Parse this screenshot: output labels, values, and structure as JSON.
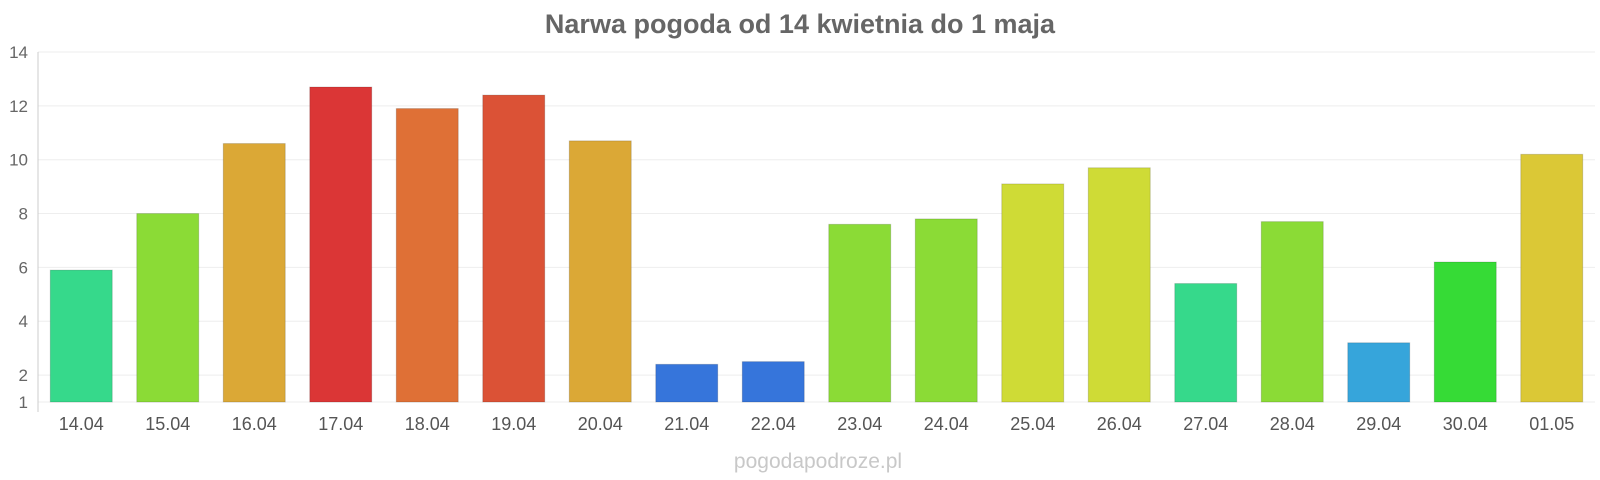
{
  "chart_data": {
    "type": "bar",
    "title": "Narwa pogoda od 14 kwietnia do 1 maja",
    "xlabel": "",
    "ylabel": "",
    "ylim": [
      1,
      14
    ],
    "yticks": [
      1,
      2,
      4,
      6,
      8,
      10,
      12,
      14
    ],
    "grid": true,
    "legend": "none",
    "categories": [
      "14.04",
      "15.04",
      "16.04",
      "17.04",
      "18.04",
      "19.04",
      "20.04",
      "21.04",
      "22.04",
      "23.04",
      "24.04",
      "25.04",
      "26.04",
      "27.04",
      "28.04",
      "29.04",
      "30.04",
      "01.05"
    ],
    "values": [
      5.9,
      8.0,
      10.6,
      12.7,
      11.9,
      12.4,
      10.7,
      2.4,
      2.5,
      7.6,
      7.8,
      9.1,
      9.7,
      5.4,
      7.7,
      3.2,
      6.2,
      10.2
    ],
    "colors": [
      "#36d98b",
      "#8bdb36",
      "#dba836",
      "#db3636",
      "#df7036",
      "#db5236",
      "#dba836",
      "#3675db",
      "#3675db",
      "#8bdb36",
      "#8bdb36",
      "#cfdb36",
      "#cfdb36",
      "#36d98b",
      "#8bdb36",
      "#36a5db",
      "#36db36",
      "#dbc836"
    ]
  },
  "credit": "pogodapodroze.pl"
}
